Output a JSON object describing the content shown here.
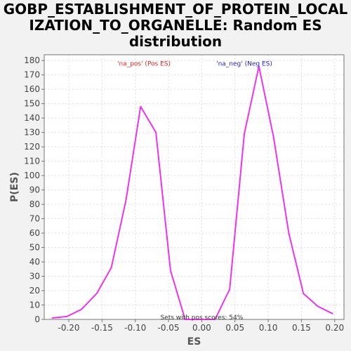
{
  "title_lines": [
    "GOBP_ESTABLISHMENT_OF_PROTEIN_LOCAL",
    "IZATION_TO_ORGANELLE: Random ES",
    "distribution"
  ],
  "chart_data": {
    "type": "line",
    "xlabel": "ES",
    "ylabel": "P(ES)",
    "xlim": [
      -0.237,
      0.214
    ],
    "ylim": [
      0,
      184
    ],
    "x_ticks": [
      -0.2,
      -0.15,
      -0.1,
      -0.05,
      0.0,
      0.05,
      0.1,
      0.15,
      0.2
    ],
    "x_tick_labels": [
      "-0.20",
      "-0.15",
      "-0.10",
      "-0.05",
      "0.00",
      "0.05",
      "0.10",
      "0.15",
      "0.20"
    ],
    "y_ticks": [
      0,
      10,
      20,
      30,
      40,
      50,
      60,
      70,
      80,
      90,
      100,
      110,
      120,
      130,
      140,
      150,
      160,
      170,
      180
    ],
    "grid": true,
    "series": [
      {
        "color": "#ee33ee",
        "x": [
          -0.225,
          -0.203,
          -0.181,
          -0.158,
          -0.136,
          -0.114,
          -0.092,
          -0.069,
          -0.047,
          -0.025,
          -0.003,
          0.02,
          0.042,
          0.064,
          0.086,
          0.108,
          0.131,
          0.153,
          0.175,
          0.197
        ],
        "y": [
          1,
          2,
          7,
          18,
          36,
          83,
          148,
          130,
          34,
          0,
          0,
          0,
          21,
          129,
          176,
          127,
          60,
          18,
          9,
          4
        ]
      }
    ],
    "annotations": [
      {
        "text": "'na_pos' (Pos ES)",
        "color": "#dd2222",
        "x": -0.087,
        "y": 178
      },
      {
        "text": "'na_neg' (Neg ES)",
        "color": "#2222cc",
        "x": 0.064,
        "y": 178
      },
      {
        "text": "Sets with pos scores: 54%",
        "color": "#333333",
        "x": 0.0,
        "y": 1.5
      }
    ]
  }
}
